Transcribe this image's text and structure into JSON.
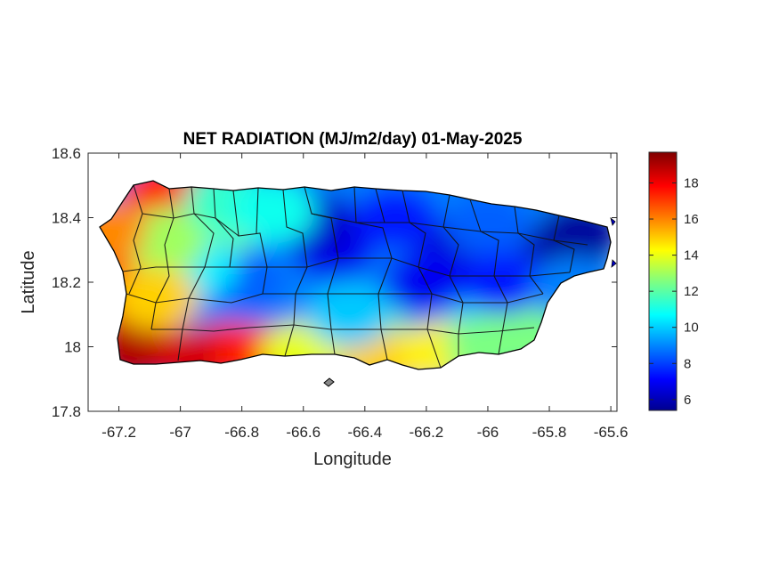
{
  "map": {
    "title": "NET RADIATION (MJ/m2/day) 01-May-2025",
    "xlabel": "Longitude",
    "ylabel": "Latitude",
    "xticks": [
      -67.2,
      -67,
      -66.8,
      -66.6,
      -66.4,
      -66.2,
      -66,
      -65.8,
      -65.6
    ],
    "xtick_labels": [
      "-67.2",
      "-67",
      "-66.8",
      "-66.6",
      "-66.4",
      "-66.2",
      "-66",
      "-65.8",
      "-65.6"
    ],
    "yticks": [
      17.8,
      18,
      18.2,
      18.4,
      18.6
    ],
    "ytick_labels": [
      "17.8",
      "18",
      "18.2",
      "18.4",
      "18.6"
    ],
    "xlim": [
      -67.3,
      -65.58
    ],
    "ylim": [
      17.8,
      18.6
    ],
    "colormap": "jet",
    "colorbar": {
      "range": [
        5.4,
        19.7
      ],
      "ticks": [
        6,
        8,
        10,
        12,
        14,
        16,
        18
      ],
      "tick_labels": [
        "6",
        "8",
        "10",
        "12",
        "14",
        "16",
        "18"
      ]
    },
    "field_description_points": [
      {
        "lon": -67.15,
        "lat": 18.05,
        "value": 18.5
      },
      {
        "lon": -66.85,
        "lat": 17.98,
        "value": 18.0
      },
      {
        "lon": -67.05,
        "lat": 18.48,
        "value": 17.5
      },
      {
        "lon": -66.9,
        "lat": 18.35,
        "value": 12.5
      },
      {
        "lon": -66.5,
        "lat": 18.3,
        "value": 7.0
      },
      {
        "lon": -66.1,
        "lat": 18.3,
        "value": 6.5
      },
      {
        "lon": -65.75,
        "lat": 18.3,
        "value": 6.0
      },
      {
        "lon": -66.4,
        "lat": 18.05,
        "value": 12.0
      },
      {
        "lon": -66.0,
        "lat": 18.1,
        "value": 10.0
      },
      {
        "lon": -65.9,
        "lat": 18.05,
        "value": 12.5
      }
    ]
  }
}
